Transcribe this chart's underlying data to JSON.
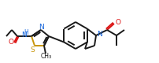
{
  "bg_color": "#ffffff",
  "bond_color": "#1a1a1a",
  "n_color": "#1464dc",
  "s_color": "#c8960a",
  "o_color": "#dc1414",
  "lw": 1.4,
  "fig_width": 2.03,
  "fig_height": 0.8,
  "dpi": 100,
  "xlim": [
    0,
    203
  ],
  "ylim": [
    0,
    80
  ]
}
